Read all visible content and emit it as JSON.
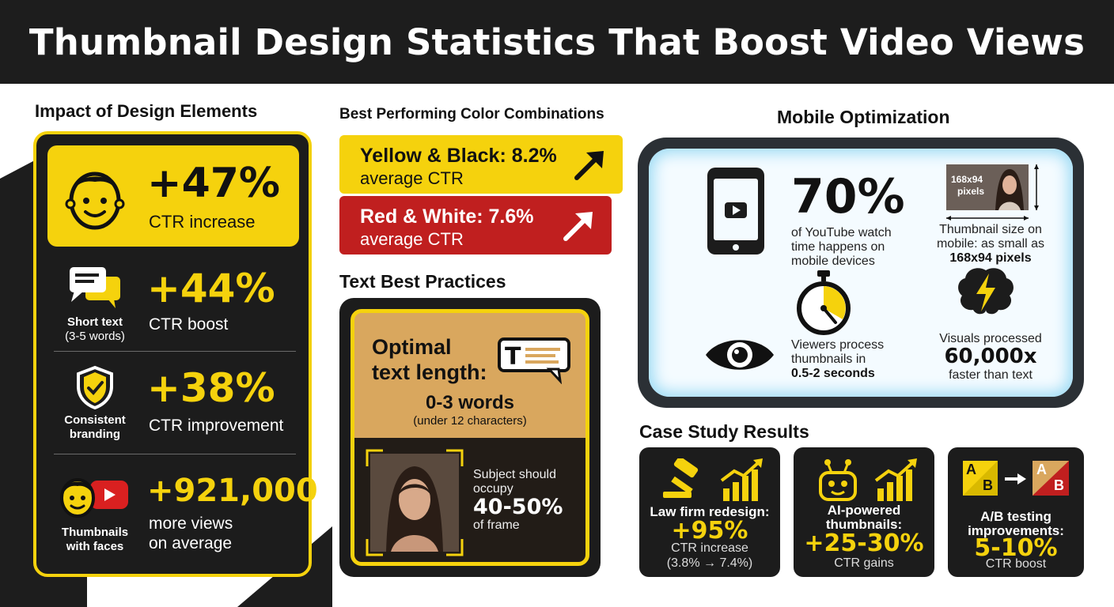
{
  "title": "Thumbnail Design Statistics That Boost Video Views",
  "colors": {
    "yellow": "#f5d20d",
    "dark": "#1c1c1c",
    "red": "#c01f1f",
    "tan": "#d9a75e"
  },
  "design_elements": {
    "heading": "Impact of Design Elements",
    "items": [
      {
        "icon": "face-icon",
        "stat": "+47%",
        "desc": "CTR increase"
      },
      {
        "icon": "chat-bubbles-icon",
        "caption_line1": "Short text",
        "caption_line2": "(3-5 words)",
        "stat": "+44%",
        "desc": "CTR boost"
      },
      {
        "icon": "shield-check-icon",
        "caption_line1": "Consistent",
        "caption_line2": "branding",
        "stat": "+38%",
        "desc": "CTR improvement"
      },
      {
        "icon": "face-with-play-icon",
        "caption_line1": "Thumbnails",
        "caption_line2": "with faces",
        "stat": "+921,000",
        "desc_line1": "more views",
        "desc_line2": "on average"
      }
    ]
  },
  "color_combos": {
    "heading": "Best Performing Color Combinations",
    "items": [
      {
        "title": "Yellow & Black: 8.2%",
        "sub": "average CTR"
      },
      {
        "title": "Red & White: 7.6%",
        "sub": "average CTR"
      }
    ]
  },
  "text_practices": {
    "heading": "Text Best Practices",
    "optimal_line1": "Optimal",
    "optimal_line2": "text length:",
    "words": "0-3 words",
    "chars": "(under 12 characters)",
    "subject_line1": "Subject should",
    "subject_line2": "occupy",
    "subject_pct": "40-50%",
    "subject_line3": "of frame"
  },
  "mobile": {
    "heading": "Mobile Optimization",
    "stat_pct": "70%",
    "stat_desc_line1": "of YouTube watch",
    "stat_desc_line2": "time happens on",
    "stat_desc_line3": "mobile devices",
    "thumb_size_label_1": "168x94",
    "thumb_size_label_2": "pixels",
    "thumb_desc_line1": "Thumbnail size on",
    "thumb_desc_line2": "mobile: as small as",
    "thumb_desc_bold": "168x94 pixels",
    "process_line1": "Viewers process",
    "process_line2": "thumbnails in",
    "process_bold": "0.5-2 seconds",
    "visuals_line1": "Visuals processed",
    "visuals_bold": "60,000x",
    "visuals_line2": "faster than text"
  },
  "case_study": {
    "heading": "Case Study Results",
    "items": [
      {
        "icon": "gavel-icon",
        "cap_line1": "Law firm redesign:",
        "num": "+95%",
        "sub_line1": "CTR increase",
        "sub_line2": "(3.8% → 7.4%)"
      },
      {
        "icon": "robot-icon",
        "cap_line1": "AI-powered",
        "cap_line2": "thumbnails:",
        "num": "+25-30%",
        "sub_line1": "CTR gains"
      },
      {
        "icon": "ab-test-icon",
        "cap_line1": "A/B testing",
        "cap_line2": "improvements:",
        "num": "5-10%",
        "sub_line1": "CTR boost",
        "a_label": "A",
        "b_label": "B"
      }
    ]
  }
}
